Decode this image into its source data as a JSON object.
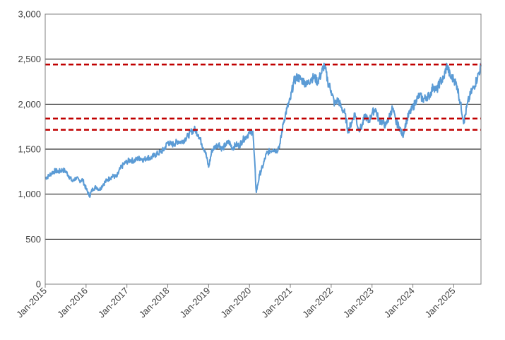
{
  "chart_data": {
    "type": "line",
    "title": "",
    "xlabel": "",
    "ylabel": "",
    "ylim": [
      0,
      3000
    ],
    "y_ticks": [
      0,
      500,
      1000,
      1500,
      2000,
      2500,
      3000
    ],
    "y_tick_labels": [
      "0",
      "500",
      "1,000",
      "1,500",
      "2,000",
      "2,500",
      "3,000"
    ],
    "x_range": [
      "2015-01",
      "2025-09"
    ],
    "x_tick_labels": [
      "Jan-2015",
      "Jan-2016",
      "Jan-2017",
      "Jan-2018",
      "Jan-2019",
      "Jan-2020",
      "Jan-2021",
      "Jan-2022",
      "Jan-2023",
      "Jan-2024",
      "Jan-2025"
    ],
    "grid": "horizontal",
    "series": [
      {
        "color": "#5b9bd5",
        "points": [
          [
            "2015-01",
            1180
          ],
          [
            "2015-02",
            1200
          ],
          [
            "2015-03",
            1240
          ],
          [
            "2015-04",
            1260
          ],
          [
            "2015-05",
            1250
          ],
          [
            "2015-06",
            1270
          ],
          [
            "2015-07",
            1255
          ],
          [
            "2015-08",
            1200
          ],
          [
            "2015-09",
            1140
          ],
          [
            "2015-10",
            1180
          ],
          [
            "2015-11",
            1150
          ],
          [
            "2015-12",
            1160
          ],
          [
            "2016-01",
            1060
          ],
          [
            "2016-02",
            980
          ],
          [
            "2016-03",
            1060
          ],
          [
            "2016-04",
            1080
          ],
          [
            "2016-05",
            1050
          ],
          [
            "2016-06",
            1110
          ],
          [
            "2016-07",
            1150
          ],
          [
            "2016-08",
            1180
          ],
          [
            "2016-09",
            1200
          ],
          [
            "2016-10",
            1190
          ],
          [
            "2016-11",
            1280
          ],
          [
            "2016-12",
            1330
          ],
          [
            "2017-01",
            1360
          ],
          [
            "2017-02",
            1380
          ],
          [
            "2017-03",
            1370
          ],
          [
            "2017-04",
            1390
          ],
          [
            "2017-05",
            1400
          ],
          [
            "2017-06",
            1380
          ],
          [
            "2017-07",
            1410
          ],
          [
            "2017-08",
            1400
          ],
          [
            "2017-09",
            1430
          ],
          [
            "2017-10",
            1450
          ],
          [
            "2017-11",
            1470
          ],
          [
            "2017-12",
            1500
          ],
          [
            "2018-01",
            1580
          ],
          [
            "2018-02",
            1550
          ],
          [
            "2018-03",
            1560
          ],
          [
            "2018-04",
            1590
          ],
          [
            "2018-05",
            1580
          ],
          [
            "2018-06",
            1610
          ],
          [
            "2018-07",
            1650
          ],
          [
            "2018-08",
            1700
          ],
          [
            "2018-09",
            1720
          ],
          [
            "2018-10",
            1660
          ],
          [
            "2018-11",
            1560
          ],
          [
            "2018-12",
            1480
          ],
          [
            "2019-01",
            1300
          ],
          [
            "2019-02",
            1490
          ],
          [
            "2019-03",
            1530
          ],
          [
            "2019-04",
            1560
          ],
          [
            "2019-05",
            1500
          ],
          [
            "2019-06",
            1550
          ],
          [
            "2019-07",
            1580
          ],
          [
            "2019-08",
            1510
          ],
          [
            "2019-09",
            1550
          ],
          [
            "2019-10",
            1540
          ],
          [
            "2019-11",
            1600
          ],
          [
            "2019-12",
            1640
          ],
          [
            "2020-01",
            1680
          ],
          [
            "2020-02",
            1700
          ],
          [
            "2020-03",
            1020
          ],
          [
            "2020-04",
            1220
          ],
          [
            "2020-05",
            1320
          ],
          [
            "2020-06",
            1450
          ],
          [
            "2020-07",
            1480
          ],
          [
            "2020-08",
            1500
          ],
          [
            "2020-09",
            1480
          ],
          [
            "2020-10",
            1560
          ],
          [
            "2020-11",
            1800
          ],
          [
            "2020-12",
            1950
          ],
          [
            "2021-01",
            2050
          ],
          [
            "2021-02",
            2250
          ],
          [
            "2021-03",
            2300
          ],
          [
            "2021-04",
            2280
          ],
          [
            "2021-05",
            2250
          ],
          [
            "2021-06",
            2220
          ],
          [
            "2021-07",
            2280
          ],
          [
            "2021-08",
            2300
          ],
          [
            "2021-09",
            2250
          ],
          [
            "2021-10",
            2330
          ],
          [
            "2021-11",
            2440
          ],
          [
            "2021-12",
            2250
          ],
          [
            "2022-01",
            2150
          ],
          [
            "2022-02",
            2000
          ],
          [
            "2022-03",
            2050
          ],
          [
            "2022-04",
            1960
          ],
          [
            "2022-05",
            1900
          ],
          [
            "2022-06",
            1700
          ],
          [
            "2022-07",
            1800
          ],
          [
            "2022-08",
            1900
          ],
          [
            "2022-09",
            1720
          ],
          [
            "2022-10",
            1750
          ],
          [
            "2022-11",
            1880
          ],
          [
            "2022-12",
            1800
          ],
          [
            "2023-01",
            1900
          ],
          [
            "2023-02",
            1950
          ],
          [
            "2023-03",
            1820
          ],
          [
            "2023-04",
            1800
          ],
          [
            "2023-05",
            1760
          ],
          [
            "2023-06",
            1850
          ],
          [
            "2023-07",
            1960
          ],
          [
            "2023-08",
            1800
          ],
          [
            "2023-09",
            1750
          ],
          [
            "2023-10",
            1650
          ],
          [
            "2023-11",
            1800
          ],
          [
            "2023-12",
            1900
          ],
          [
            "2024-01",
            1960
          ],
          [
            "2024-02",
            2050
          ],
          [
            "2024-03",
            2100
          ],
          [
            "2024-04",
            2050
          ],
          [
            "2024-05",
            2080
          ],
          [
            "2024-06",
            2100
          ],
          [
            "2024-07",
            2200
          ],
          [
            "2024-08",
            2150
          ],
          [
            "2024-09",
            2250
          ],
          [
            "2024-10",
            2280
          ],
          [
            "2024-11",
            2440
          ],
          [
            "2024-12",
            2300
          ],
          [
            "2025-01",
            2280
          ],
          [
            "2025-02",
            2200
          ],
          [
            "2025-03",
            2000
          ],
          [
            "2025-04",
            1800
          ],
          [
            "2025-05",
            2000
          ],
          [
            "2025-06",
            2120
          ],
          [
            "2025-07",
            2200
          ],
          [
            "2025-08",
            2300
          ],
          [
            "2025-09",
            2420
          ]
        ]
      }
    ],
    "reference_lines": [
      {
        "y": 2440,
        "style": "dashed",
        "color": "#c00000"
      },
      {
        "y": 1840,
        "style": "dashed",
        "color": "#c00000"
      },
      {
        "y": 1715,
        "style": "dashed",
        "color": "#c00000"
      }
    ]
  }
}
